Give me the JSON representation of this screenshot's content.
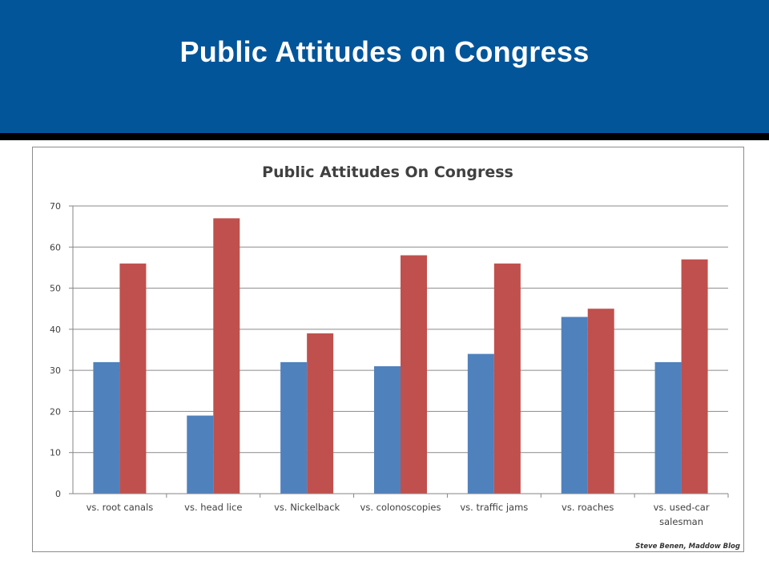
{
  "slide": {
    "title": "Public Attitudes on Congress",
    "banner_color": "#03559a"
  },
  "chart_data": {
    "type": "bar",
    "title": "Public Attitudes On Congress",
    "categories": [
      "vs. root canals",
      "vs. head lice",
      "vs. Nickelback",
      "vs. colonoscopies",
      "vs. traffic jams",
      "vs. roaches",
      "vs. used-car salesman"
    ],
    "category_lines": [
      [
        "vs. root canals"
      ],
      [
        "vs. head lice"
      ],
      [
        "vs. Nickelback"
      ],
      [
        "vs. colonoscopies"
      ],
      [
        "vs. traffic jams"
      ],
      [
        "vs. roaches"
      ],
      [
        "vs. used-car",
        "salesman"
      ]
    ],
    "series": [
      {
        "color": "#4f81bd",
        "values": [
          32,
          19,
          32,
          31,
          34,
          43,
          32
        ]
      },
      {
        "color": "#c0504d",
        "values": [
          56,
          67,
          39,
          58,
          56,
          45,
          57
        ]
      }
    ],
    "ylim": [
      0,
      70
    ],
    "yticks": [
      0,
      10,
      20,
      30,
      40,
      50,
      60,
      70
    ],
    "grid": true,
    "xlabel": "",
    "ylabel": "",
    "credit": "Steve Benen, Maddow Blog"
  }
}
